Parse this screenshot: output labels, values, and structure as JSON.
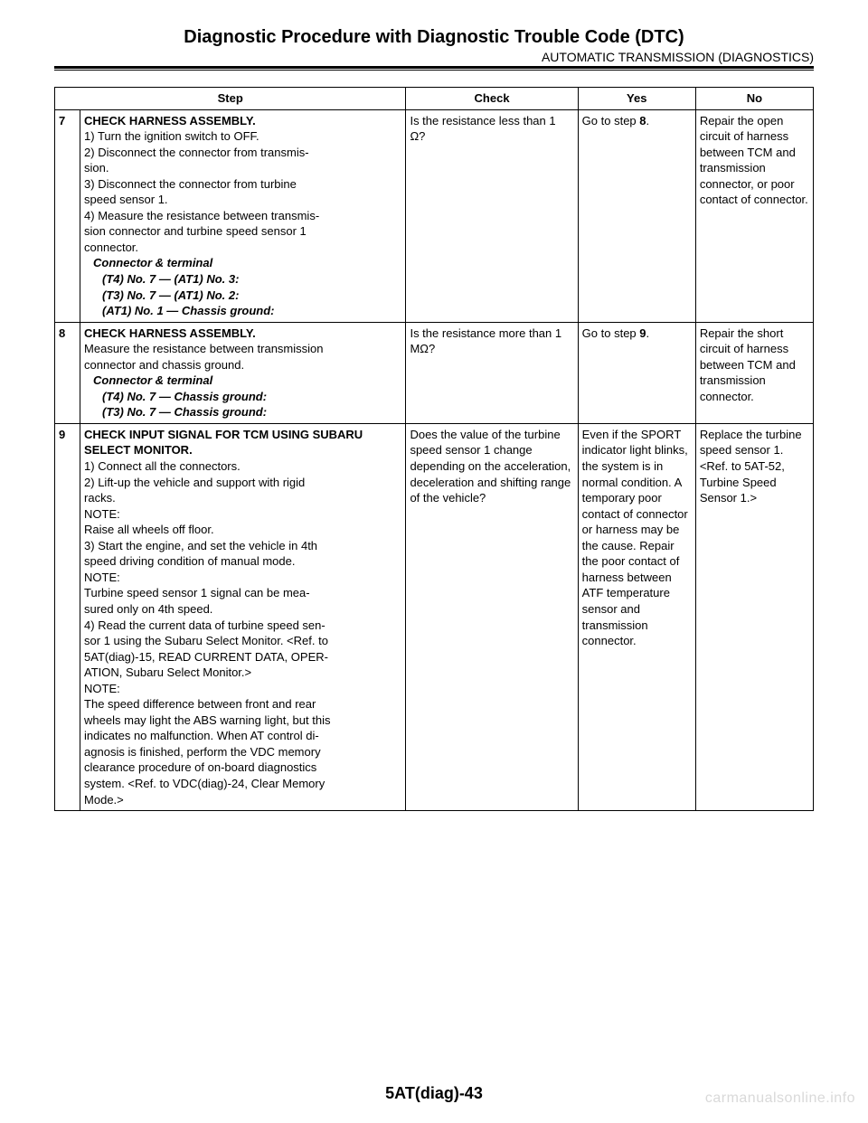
{
  "header": {
    "title": "Diagnostic Procedure with Diagnostic Trouble Code (DTC)",
    "subtitle": "AUTOMATIC TRANSMISSION (DIAGNOSTICS)"
  },
  "table": {
    "columns": [
      "Step",
      "Check",
      "Yes",
      "No"
    ],
    "rows": [
      {
        "num": "7",
        "step": {
          "title": "CHECK HARNESS ASSEMBLY.",
          "lines": [
            {
              "t": "1)  Turn the ignition switch to OFF.",
              "cls": ""
            },
            {
              "t": "2)  Disconnect the connector from transmis-",
              "cls": ""
            },
            {
              "t": "sion.",
              "cls": ""
            },
            {
              "t": "3)  Disconnect the connector from turbine",
              "cls": ""
            },
            {
              "t": "speed sensor 1.",
              "cls": ""
            },
            {
              "t": "4)  Measure the resistance between transmis-",
              "cls": ""
            },
            {
              "t": "sion connector and turbine speed sensor 1",
              "cls": ""
            },
            {
              "t": "connector.",
              "cls": ""
            },
            {
              "t": "Connector & terminal",
              "cls": "italic indent1"
            },
            {
              "t": "(T4) No. 7 — (AT1) No. 3:",
              "cls": "italic indent2"
            },
            {
              "t": "(T3) No. 7 — (AT1) No. 2:",
              "cls": "italic indent2"
            },
            {
              "t": "(AT1) No. 1 — Chassis ground:",
              "cls": "italic indent2"
            }
          ]
        },
        "check": "Is the resistance less than 1 Ω?",
        "yes_pre": "Go to step ",
        "yes_bold": "8",
        "yes_post": ".",
        "no": "Repair the open circuit of harness between TCM and transmission connector, or poor contact of connector."
      },
      {
        "num": "8",
        "step": {
          "title": "CHECK HARNESS ASSEMBLY.",
          "lines": [
            {
              "t": "Measure the resistance between transmission",
              "cls": ""
            },
            {
              "t": "connector and chassis ground.",
              "cls": ""
            },
            {
              "t": "Connector & terminal",
              "cls": "italic indent1"
            },
            {
              "t": "(T4) No. 7 — Chassis ground:",
              "cls": "italic indent2"
            },
            {
              "t": "(T3) No. 7 — Chassis ground:",
              "cls": "italic indent2"
            }
          ]
        },
        "check": "Is the resistance more than 1 MΩ?",
        "yes_pre": "Go to step ",
        "yes_bold": "9",
        "yes_post": ".",
        "no": "Repair the short circuit of harness between TCM and transmission connector."
      },
      {
        "num": "9",
        "step": {
          "title": "CHECK INPUT SIGNAL FOR TCM USING SUBARU SELECT MONITOR.",
          "lines": [
            {
              "t": "1)  Connect all the connectors.",
              "cls": ""
            },
            {
              "t": "2)  Lift-up the vehicle and support with rigid",
              "cls": ""
            },
            {
              "t": "racks.",
              "cls": ""
            },
            {
              "t": "NOTE:",
              "cls": ""
            },
            {
              "t": "Raise all wheels off floor.",
              "cls": ""
            },
            {
              "t": "3)  Start the engine, and set the vehicle in 4th",
              "cls": ""
            },
            {
              "t": "speed driving condition of manual mode.",
              "cls": ""
            },
            {
              "t": "NOTE:",
              "cls": ""
            },
            {
              "t": "Turbine speed sensor 1 signal can be mea-",
              "cls": "note-body"
            },
            {
              "t": "sured only on 4th speed.",
              "cls": ""
            },
            {
              "t": "4)  Read the current data of turbine speed sen-",
              "cls": ""
            },
            {
              "t": "sor 1 using the Subaru Select Monitor. <Ref. to",
              "cls": ""
            },
            {
              "t": "5AT(diag)-15, READ CURRENT DATA, OPER-",
              "cls": ""
            },
            {
              "t": "ATION, Subaru Select Monitor.>",
              "cls": ""
            },
            {
              "t": "NOTE:",
              "cls": ""
            },
            {
              "t": "The speed difference between front and rear",
              "cls": "note-body"
            },
            {
              "t": "wheels may light the ABS warning light, but this",
              "cls": "note-body"
            },
            {
              "t": "indicates no malfunction. When AT control di-",
              "cls": "note-body"
            },
            {
              "t": "agnosis is finished, perform the VDC memory",
              "cls": "note-body"
            },
            {
              "t": "clearance procedure of on-board diagnostics",
              "cls": "note-body"
            },
            {
              "t": "system. <Ref. to VDC(diag)-24, Clear Memory",
              "cls": "note-body"
            },
            {
              "t": "Mode.>",
              "cls": ""
            }
          ]
        },
        "check": "Does the value of the turbine speed sensor 1 change depending on the acceleration, deceleration and shifting range of the vehicle?",
        "yes_full": "Even if the SPORT indicator light blinks, the system is in normal condition. A temporary poor contact of connector or harness may be the cause. Repair the poor contact of harness between ATF temperature sensor and transmission connector.",
        "no": "Replace the turbine speed sensor 1. <Ref. to 5AT-52, Turbine Speed Sensor 1.>"
      }
    ]
  },
  "footer": {
    "page": "5AT(diag)-43",
    "watermark": "carmanualsonline.info"
  }
}
